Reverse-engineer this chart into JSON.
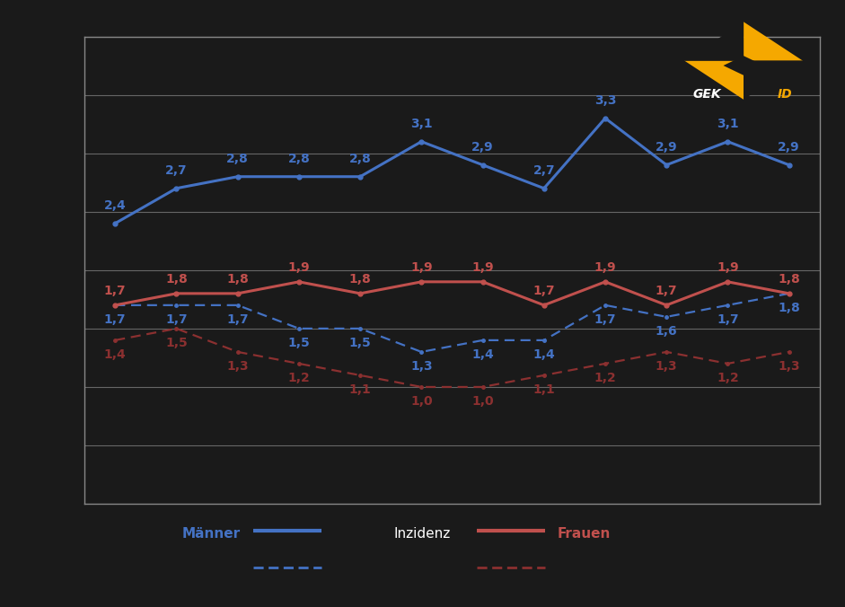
{
  "x_values": [
    0,
    1,
    2,
    3,
    4,
    5,
    6,
    7,
    8,
    9,
    10,
    11
  ],
  "maenner_inzidenz": [
    2.4,
    2.7,
    2.8,
    2.8,
    2.8,
    3.1,
    2.9,
    2.7,
    3.3,
    2.9,
    3.1,
    2.9
  ],
  "maenner_mortalitaet": [
    1.7,
    1.7,
    1.7,
    1.5,
    1.5,
    1.3,
    1.4,
    1.4,
    1.7,
    1.6,
    1.7,
    1.8
  ],
  "frauen_inzidenz": [
    1.7,
    1.8,
    1.8,
    1.9,
    1.8,
    1.9,
    1.9,
    1.7,
    1.9,
    1.7,
    1.9,
    1.8
  ],
  "frauen_mortalitaet": [
    1.4,
    1.5,
    1.3,
    1.2,
    1.1,
    1.0,
    1.0,
    1.1,
    1.2,
    1.3,
    1.2,
    1.3
  ],
  "color_maenner_inzidenz": "#4472C4",
  "color_maenner_mortalitaet": "#4472C4",
  "color_frauen_inzidenz": "#C0504D",
  "color_frauen_mortalitaet": "#8B3030",
  "background_color": "#1a1a1a",
  "plot_bg_color": "#1a1a1a",
  "grid_color": "#666666",
  "border_color": "#888888",
  "ylim": [
    0.0,
    4.0
  ],
  "ytick_positions": [
    0.5,
    1.0,
    1.5,
    2.0,
    2.5,
    3.0,
    3.5
  ],
  "grid_lines": [
    0.5,
    1.0,
    1.5,
    2.0,
    2.5,
    3.0,
    3.5,
    4.0
  ],
  "label_fontsize": 10,
  "legend_maenner": "Männer",
  "legend_frauen": "Frauen",
  "legend_inzidenz": "Inzidenz",
  "gekid_text": "GEK",
  "gekid_id": "ID"
}
